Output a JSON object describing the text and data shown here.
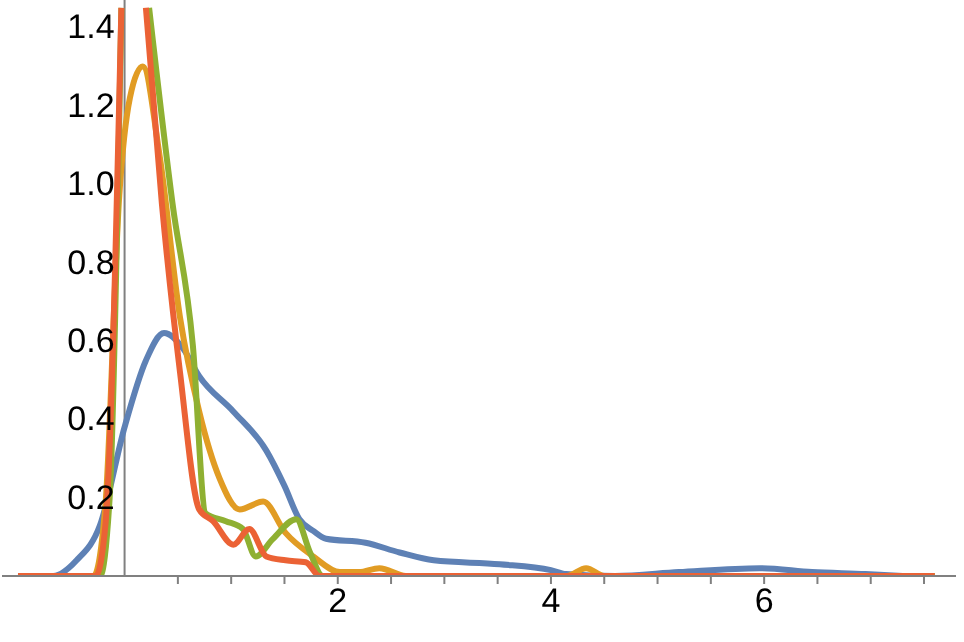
{
  "chart_data": {
    "type": "line",
    "xlim": [
      -1.15,
      7.8
    ],
    "ylim": [
      0,
      1.47
    ],
    "xticks": [
      {
        "value": 0.5,
        "label": null
      },
      {
        "value": 1,
        "label": null
      },
      {
        "value": 1.5,
        "label": null
      },
      2,
      {
        "value": 2.5,
        "label": null
      },
      {
        "value": 3,
        "label": null
      },
      {
        "value": 3.5,
        "label": null
      },
      4,
      {
        "value": 4.5,
        "label": null
      },
      {
        "value": 5,
        "label": null
      },
      {
        "value": 5.5,
        "label": null
      },
      6,
      {
        "value": 6.5,
        "label": null
      },
      {
        "value": 7,
        "label": null
      },
      {
        "value": 7.5,
        "label": null
      }
    ],
    "yticks": [
      0.2,
      0.4,
      0.6,
      0.8,
      {
        "value": 1,
        "label": "1.0"
      },
      1.2,
      1.4
    ],
    "grid": false,
    "legend": false,
    "marker": "none",
    "line_style": "solid",
    "series": [
      {
        "color": "#5e81b5",
        "x": [
          -1.0,
          -0.67,
          -0.45,
          -0.23,
          0,
          0.2,
          0.37,
          0.55,
          0.7,
          1.02,
          1.33,
          1.5,
          1.64,
          1.77,
          1.89,
          2.26,
          2.58,
          2.9,
          3.52,
          4.0,
          4.14,
          4.6,
          5.2,
          5.96,
          6.45,
          6.95,
          7.3
        ],
        "values": [
          0,
          0,
          0.04,
          0.13,
          0.38,
          0.55,
          0.62,
          0.58,
          0.51,
          0.42,
          0.32,
          0.23,
          0.145,
          0.115,
          0.095,
          0.085,
          0.06,
          0.04,
          0.03,
          0.015,
          0.005,
          0,
          0.01,
          0.02,
          0.01,
          0.005,
          0
        ]
      },
      {
        "color": "#e19c24",
        "x": [
          -1.0,
          -0.29,
          -0.18,
          -0.05,
          0.05,
          0.17,
          0.33,
          0.52,
          0.7,
          0.89,
          1.08,
          1.3,
          1.51,
          1.77,
          2.02,
          2.2,
          2.39,
          2.64,
          4.15,
          4.33,
          4.5,
          7.6
        ],
        "values": [
          0,
          0,
          0.18,
          0.97,
          1.22,
          1.3,
          1.07,
          0.66,
          0.42,
          0.25,
          0.17,
          0.19,
          0.11,
          0.05,
          0.01,
          0.01,
          0.02,
          0,
          0,
          0.02,
          0,
          0
        ]
      },
      {
        "color": "#8fb032",
        "x": [
          -1.0,
          -0.23,
          -0.14,
          -0.03,
          0.1,
          0.23,
          0.45,
          0.64,
          0.76,
          0.95,
          1.11,
          1.23,
          1.39,
          1.61,
          1.74,
          1.86,
          7.6
        ],
        "values": [
          0,
          0,
          0.2,
          1.45,
          null,
          1.45,
          0.95,
          0.59,
          0.16,
          0.14,
          0.12,
          0.05,
          0.094,
          0.145,
          0.06,
          0,
          0
        ]
      },
      {
        "color": "#eb6235",
        "x": [
          -1.0,
          -0.27,
          -0.18,
          -0.03,
          0.08,
          0.2,
          0.35,
          0.52,
          0.7,
          0.83,
          1.02,
          1.17,
          1.33,
          1.51,
          1.7,
          1.83,
          7.6
        ],
        "values": [
          0,
          0,
          0.13,
          1.45,
          null,
          1.45,
          0.95,
          0.52,
          0.17,
          0.14,
          0.08,
          0.12,
          0.05,
          0.04,
          0.035,
          0,
          0
        ]
      }
    ]
  }
}
